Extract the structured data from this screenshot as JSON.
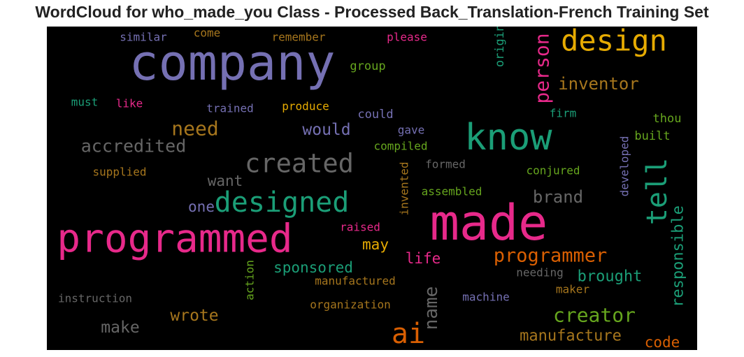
{
  "chart_data": {
    "type": "wordcloud",
    "title": "WordCloud for who_made_you Class - Processed Back_Translation-French Training Set",
    "background": "#000000",
    "palette": [
      "#7570b3",
      "#e7298a",
      "#1b9e77",
      "#e6ab02",
      "#d95f02",
      "#66a61e",
      "#a6761d",
      "#666666"
    ],
    "words": [
      {
        "text": "company",
        "weight": 1.0,
        "color": "#7570b3"
      },
      {
        "text": "made",
        "weight": 0.85,
        "color": "#e7298a"
      },
      {
        "text": "programmed",
        "weight": 0.78,
        "color": "#e7298a"
      },
      {
        "text": "know",
        "weight": 0.72,
        "color": "#1b9e77"
      },
      {
        "text": "design",
        "weight": 0.6,
        "color": "#e6ab02"
      },
      {
        "text": "designed",
        "weight": 0.58,
        "color": "#1b9e77"
      },
      {
        "text": "created",
        "weight": 0.55,
        "color": "#666666"
      },
      {
        "text": "ai",
        "weight": 0.55,
        "color": "#d95f02"
      },
      {
        "text": "tell",
        "weight": 0.55,
        "color": "#1b9e77"
      },
      {
        "text": "person",
        "weight": 0.42,
        "color": "#e7298a"
      },
      {
        "text": "name",
        "weight": 0.38,
        "color": "#666666"
      },
      {
        "text": "need",
        "weight": 0.36,
        "color": "#a6761d"
      },
      {
        "text": "creator",
        "weight": 0.36,
        "color": "#66a61e"
      },
      {
        "text": "programmer",
        "weight": 0.36,
        "color": "#d95f02"
      },
      {
        "text": "accredited",
        "weight": 0.32,
        "color": "#666666"
      },
      {
        "text": "brand",
        "weight": 0.32,
        "color": "#666666"
      },
      {
        "text": "inventor",
        "weight": 0.3,
        "color": "#a6761d"
      },
      {
        "text": "would",
        "weight": 0.3,
        "color": "#7570b3"
      },
      {
        "text": "make",
        "weight": 0.3,
        "color": "#666666"
      },
      {
        "text": "wrote",
        "weight": 0.3,
        "color": "#a6761d"
      },
      {
        "text": "brought",
        "weight": 0.3,
        "color": "#1b9e77"
      },
      {
        "text": "responsible",
        "weight": 0.3,
        "color": "#1b9e77"
      },
      {
        "text": "manufacture",
        "weight": 0.3,
        "color": "#a6761d"
      },
      {
        "text": "code",
        "weight": 0.28,
        "color": "#d95f02"
      },
      {
        "text": "want",
        "weight": 0.27,
        "color": "#666666"
      },
      {
        "text": "sponsored",
        "weight": 0.27,
        "color": "#1b9e77"
      },
      {
        "text": "life",
        "weight": 0.27,
        "color": "#e7298a"
      },
      {
        "text": "one",
        "weight": 0.25,
        "color": "#7570b3"
      },
      {
        "text": "may",
        "weight": 0.25,
        "color": "#e6ab02"
      },
      {
        "text": "group",
        "weight": 0.2,
        "color": "#66a61e"
      },
      {
        "text": "originator",
        "weight": 0.2,
        "color": "#1b9e77"
      },
      {
        "text": "could",
        "weight": 0.2,
        "color": "#7570b3"
      },
      {
        "text": "thou",
        "weight": 0.2,
        "color": "#66a61e"
      },
      {
        "text": "built",
        "weight": 0.2,
        "color": "#66a61e"
      },
      {
        "text": "trained",
        "weight": 0.19,
        "color": "#7570b3"
      },
      {
        "text": "produce",
        "weight": 0.19,
        "color": "#e6ab02"
      },
      {
        "text": "must",
        "weight": 0.19,
        "color": "#1b9e77"
      },
      {
        "text": "like",
        "weight": 0.19,
        "color": "#e7298a"
      },
      {
        "text": "firm",
        "weight": 0.19,
        "color": "#1b9e77"
      },
      {
        "text": "gave",
        "weight": 0.19,
        "color": "#7570b3"
      },
      {
        "text": "compiled",
        "weight": 0.19,
        "color": "#66a61e"
      },
      {
        "text": "supplied",
        "weight": 0.19,
        "color": "#a6761d"
      },
      {
        "text": "formed",
        "weight": 0.19,
        "color": "#666666"
      },
      {
        "text": "conjured",
        "weight": 0.19,
        "color": "#66a61e"
      },
      {
        "text": "developed",
        "weight": 0.19,
        "color": "#7570b3"
      },
      {
        "text": "assembled",
        "weight": 0.19,
        "color": "#66a61e"
      },
      {
        "text": "invented",
        "weight": 0.19,
        "color": "#a6761d"
      },
      {
        "text": "raised",
        "weight": 0.19,
        "color": "#e7298a"
      },
      {
        "text": "manufactured",
        "weight": 0.19,
        "color": "#a6761d"
      },
      {
        "text": "needing",
        "weight": 0.19,
        "color": "#666666"
      },
      {
        "text": "maker",
        "weight": 0.19,
        "color": "#a6761d"
      },
      {
        "text": "action",
        "weight": 0.19,
        "color": "#66a61e"
      },
      {
        "text": "instruction",
        "weight": 0.19,
        "color": "#666666"
      },
      {
        "text": "organization",
        "weight": 0.19,
        "color": "#a6761d"
      },
      {
        "text": "machine",
        "weight": 0.19,
        "color": "#7570b3"
      },
      {
        "text": "similar",
        "weight": 0.19,
        "color": "#7570b3"
      },
      {
        "text": "come",
        "weight": 0.19,
        "color": "#a6761d"
      },
      {
        "text": "remember",
        "weight": 0.19,
        "color": "#a6761d"
      },
      {
        "text": "please",
        "weight": 0.19,
        "color": "#e7298a"
      }
    ]
  }
}
